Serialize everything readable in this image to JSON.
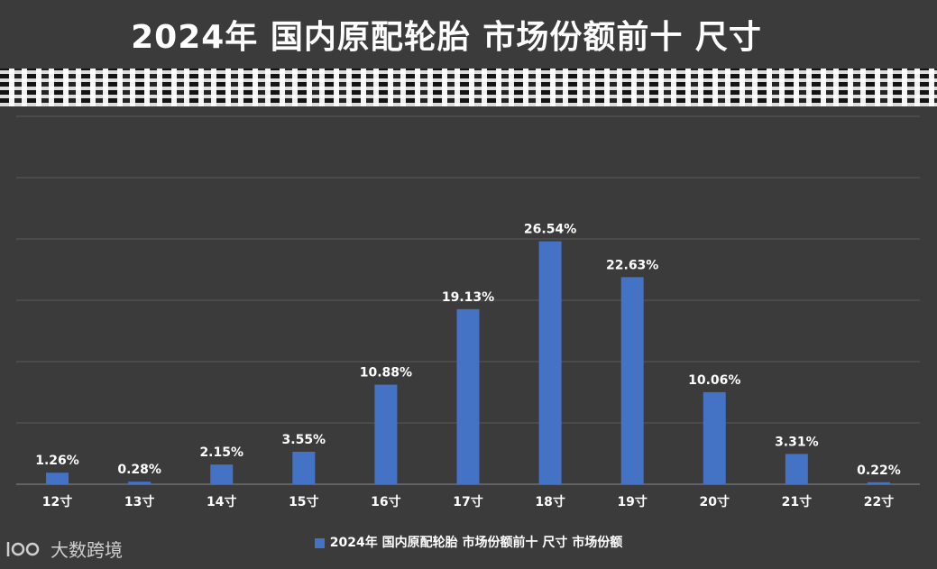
{
  "header": {
    "title": "2024年 国内原配轮胎 市场份额前十 尺寸"
  },
  "legend": {
    "label": "2024年 国内原配轮胎 市场份额前十 尺寸 市场份额"
  },
  "watermark": {
    "text": "大数跨境"
  },
  "colors": {
    "bar": "#4472c4",
    "background": "#3b3b3b",
    "grid": "#5a5a5a",
    "text": "#ffffff"
  },
  "chart_data": {
    "type": "bar",
    "categories": [
      "12寸",
      "13寸",
      "14寸",
      "15寸",
      "16寸",
      "17寸",
      "18寸",
      "19寸",
      "20寸",
      "21寸",
      "22寸"
    ],
    "series": [
      {
        "name": "2024年 国内原配轮胎 市场份额前十 尺寸 市场份额",
        "values": [
          1.26,
          0.28,
          2.15,
          3.55,
          10.88,
          19.13,
          26.54,
          22.63,
          10.06,
          3.31,
          0.22
        ],
        "labels": [
          "1.26%",
          "0.28%",
          "2.15%",
          "3.55%",
          "10.88%",
          "19.13%",
          "26.54%",
          "22.63%",
          "10.06%",
          "3.31%",
          "0.22%"
        ]
      }
    ],
    "ylim": [
      0,
      30
    ],
    "grid": true,
    "legend_position": "bottom"
  }
}
